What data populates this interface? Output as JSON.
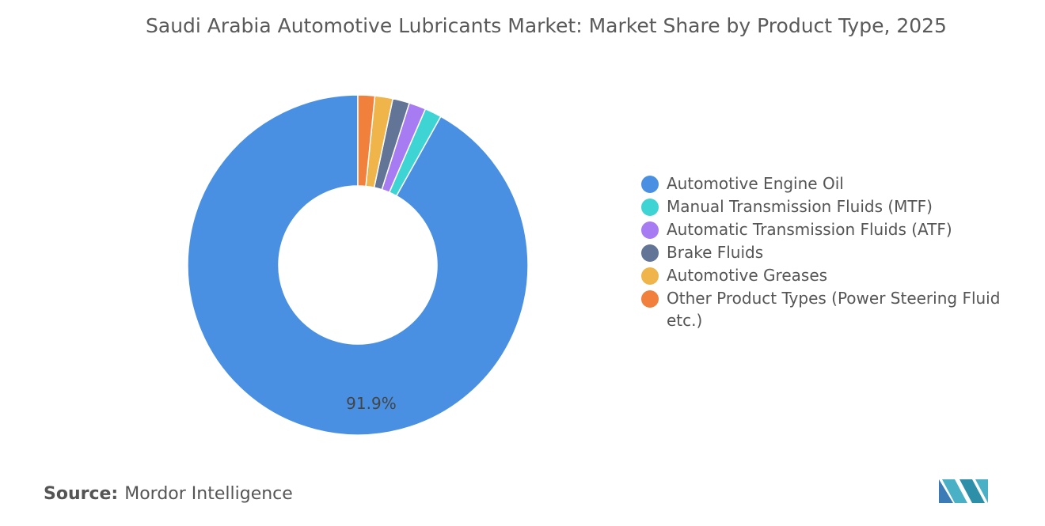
{
  "chart_data": {
    "type": "donut",
    "title": "Saudi Arabia Automotive Lubricants Market: Market Share by Product Type, 2025",
    "categories": [
      "Automotive Engine Oil",
      "Manual Transmission Fluids (MTF)",
      "Automatic Transmission Fluids (ATF)",
      "Brake Fluids",
      "Automotive Greases",
      "Other Product Types (Power Steering Fluid etc.)"
    ],
    "values": [
      91.9,
      1.6,
      1.6,
      1.6,
      1.7,
      1.6
    ],
    "value_labels": [
      "91.9%",
      null,
      null,
      null,
      null,
      null
    ],
    "colors": [
      "#4a90e2",
      "#3fd4d4",
      "#a77bf2",
      "#627597",
      "#efb44a",
      "#f0803c"
    ],
    "direction": "counterclockwise",
    "legend": "right"
  },
  "source_label": "Source:",
  "source": "Mordor Intelligence"
}
